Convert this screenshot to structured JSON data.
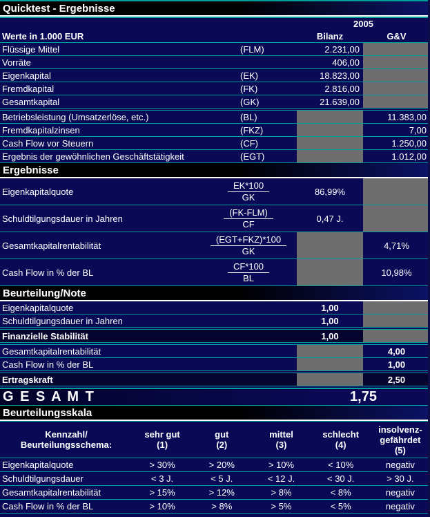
{
  "title": "Quicktest - Ergebnisse",
  "colors": {
    "background_navy": "#090955",
    "row_dark": "#04042e",
    "grid_line_teal": "#00a09a",
    "cell_gray": "#6e6e6e",
    "text_white": "#ffffff"
  },
  "header": {
    "year": "2005",
    "unit_label": "Werte in 1.000 EUR",
    "col_bilanz": "Bilanz",
    "col_gv": "G&V"
  },
  "inputs": {
    "rows": [
      {
        "label": "Flüssige Mittel",
        "abbr": "(FLM)",
        "bilanz": "2.231,00",
        "gv": ""
      },
      {
        "label": "Vorräte",
        "abbr": "",
        "bilanz": "406,00",
        "gv": ""
      },
      {
        "label": "Eigenkapital",
        "abbr": "(EK)",
        "bilanz": "18.823,00",
        "gv": ""
      },
      {
        "label": "Fremdkapital",
        "abbr": "(FK)",
        "bilanz": "2.816,00",
        "gv": ""
      },
      {
        "label": "Gesamtkapital",
        "abbr": "(GK)",
        "bilanz": "21.639,00",
        "gv": ""
      },
      {
        "label": "Betriebsleistung (Umsatzerlöse, etc.)",
        "abbr": "(BL)",
        "bilanz": "",
        "gv": "11.383,00"
      },
      {
        "label": "Fremdkapitalzinsen",
        "abbr": "(FKZ)",
        "bilanz": "",
        "gv": "7,00"
      },
      {
        "label": "Cash Flow vor Steuern",
        "abbr": "(CF)",
        "bilanz": "",
        "gv": "1.250,00"
      },
      {
        "label": "Ergebnis der gewöhnlichen Geschäftstätigkeit",
        "abbr": "(EGT)",
        "bilanz": "",
        "gv": "1.012,00"
      }
    ]
  },
  "ergebnisse": {
    "section_title": "Ergebnisse",
    "rows": [
      {
        "label": "Eigenkapitalquote",
        "formula_num": "EK*100",
        "formula_den": "GK",
        "bilanz": "86,99%",
        "gv": ""
      },
      {
        "label": "Schuldtilgungsdauer in Jahren",
        "formula_num": "(FK-FLM)",
        "formula_den": "CF",
        "bilanz": "0,47 J.",
        "gv": ""
      },
      {
        "label": "Gesamtkapitalrentabilität",
        "formula_num": "(EGT+FKZ)*100",
        "formula_den": "GK",
        "bilanz": "",
        "gv": "4,71%"
      },
      {
        "label": "Cash Flow in % der BL",
        "formula_num": "CF*100",
        "formula_den": "BL",
        "bilanz": "",
        "gv": "10,98%"
      }
    ]
  },
  "beurteilung": {
    "section_title": "Beurteilung/Note",
    "rows": [
      {
        "label": "Eigenkapitalquote",
        "bilanz": "1,00",
        "gv": ""
      },
      {
        "label": "Schuldtilgungsdauer in Jahren",
        "bilanz": "1,00",
        "gv": ""
      },
      {
        "label": "Finanzielle Stabilität",
        "bilanz": "1,00",
        "gv": ""
      },
      {
        "label": "Gesamtkapitalrentabilität",
        "bilanz": "",
        "gv": "4,00"
      },
      {
        "label": "Cash Flow in % der BL",
        "bilanz": "",
        "gv": "1,00"
      },
      {
        "label": "Ertragskraft",
        "bilanz": "",
        "gv": "2,50"
      }
    ]
  },
  "gesamt": {
    "label": "G E S A M T",
    "value": "1,75"
  },
  "skala": {
    "section_title": "Beurteilungsskala",
    "header": {
      "kennzahl_line1": "Kennzahl/",
      "kennzahl_line2": "Beurteilungsschema:",
      "grades": [
        {
          "line1": "sehr gut",
          "line2": "(1)",
          "line3": ""
        },
        {
          "line1": "gut",
          "line2": "(2)",
          "line3": ""
        },
        {
          "line1": "mittel",
          "line2": "(3)",
          "line3": ""
        },
        {
          "line1": "schlecht",
          "line2": "(4)",
          "line3": ""
        },
        {
          "line1": "insolvenz-",
          "line2": "gefährdet",
          "line3": "(5)"
        }
      ]
    },
    "rows": [
      {
        "label": "Eigenkapitalquote",
        "values": [
          "> 30%",
          "> 20%",
          "> 10%",
          "< 10%",
          "negativ"
        ]
      },
      {
        "label": "Schuldtilgungsdauer",
        "values": [
          "< 3 J.",
          "< 5 J.",
          "< 12 J.",
          "< 30 J.",
          "> 30 J."
        ]
      },
      {
        "label": "Gesamtkapitalrentabilität",
        "values": [
          "> 15%",
          "> 12%",
          "> 8%",
          "< 8%",
          "negativ"
        ]
      },
      {
        "label": "Cash Flow in % der BL",
        "values": [
          "> 10%",
          "> 8%",
          "> 5%",
          "< 5%",
          "negativ"
        ]
      }
    ]
  }
}
